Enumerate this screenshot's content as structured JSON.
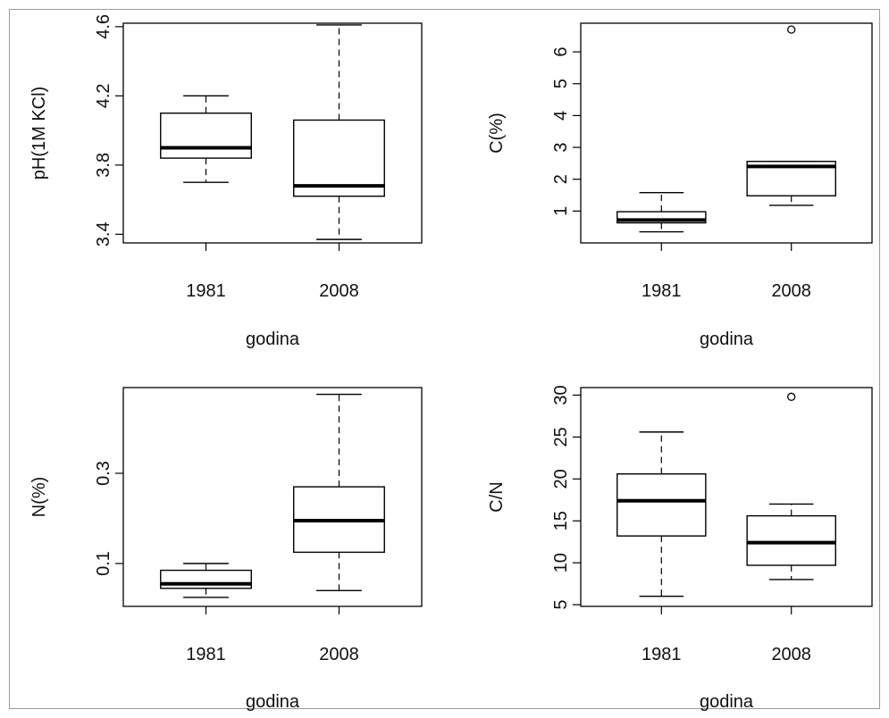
{
  "chart_data": [
    {
      "type": "box",
      "categories": [
        "1981",
        "2008"
      ],
      "xlabel": "godina",
      "ylabel": "pH(1M KCl)",
      "ylim": [
        3.35,
        4.62
      ],
      "yticks": [
        "3.4",
        "3.8",
        "4.2",
        "4.6"
      ],
      "boxes": [
        {
          "category": "1981",
          "whisker_low": 3.7,
          "q1": 3.84,
          "median": 3.9,
          "q3": 4.1,
          "whisker_high": 4.2,
          "outliers": []
        },
        {
          "category": "2008",
          "whisker_low": 3.37,
          "q1": 3.62,
          "median": 3.68,
          "q3": 4.06,
          "whisker_high": 4.61,
          "outliers": []
        }
      ]
    },
    {
      "type": "box",
      "categories": [
        "1981",
        "2008"
      ],
      "xlabel": "godina",
      "ylabel": "C(%)",
      "ylim": [
        0.0,
        6.9
      ],
      "yticks": [
        "1",
        "2",
        "3",
        "4",
        "5",
        "6"
      ],
      "boxes": [
        {
          "category": "1981",
          "whisker_low": 0.35,
          "q1": 0.63,
          "median": 0.72,
          "q3": 0.98,
          "whisker_high": 1.58,
          "outliers": []
        },
        {
          "category": "2008",
          "whisker_low": 1.18,
          "q1": 1.48,
          "median": 2.4,
          "q3": 2.56,
          "whisker_high": 2.56,
          "outliers": [
            6.7
          ]
        }
      ]
    },
    {
      "type": "box",
      "categories": [
        "1981",
        "2008"
      ],
      "xlabel": "godina",
      "ylabel": "N(%)",
      "ylim": [
        0.005,
        0.49
      ],
      "yticks": [
        "0.1",
        "0.3"
      ],
      "boxes": [
        {
          "category": "1981",
          "whisker_low": 0.025,
          "q1": 0.045,
          "median": 0.055,
          "q3": 0.085,
          "whisker_high": 0.1,
          "outliers": []
        },
        {
          "category": "2008",
          "whisker_low": 0.04,
          "q1": 0.125,
          "median": 0.195,
          "q3": 0.27,
          "whisker_high": 0.475,
          "outliers": []
        }
      ]
    },
    {
      "type": "box",
      "categories": [
        "1981",
        "2008"
      ],
      "xlabel": "godina",
      "ylabel": "C/N",
      "ylim": [
        4.8,
        30.9
      ],
      "yticks": [
        "5",
        "10",
        "15",
        "20",
        "25",
        "30"
      ],
      "boxes": [
        {
          "category": "1981",
          "whisker_low": 6.0,
          "q1": 13.2,
          "median": 17.4,
          "q3": 20.6,
          "whisker_high": 25.6,
          "outliers": []
        },
        {
          "category": "2008",
          "whisker_low": 8.0,
          "q1": 9.7,
          "median": 12.4,
          "q3": 15.6,
          "whisker_high": 17.0,
          "outliers": [
            29.8
          ]
        }
      ]
    }
  ]
}
